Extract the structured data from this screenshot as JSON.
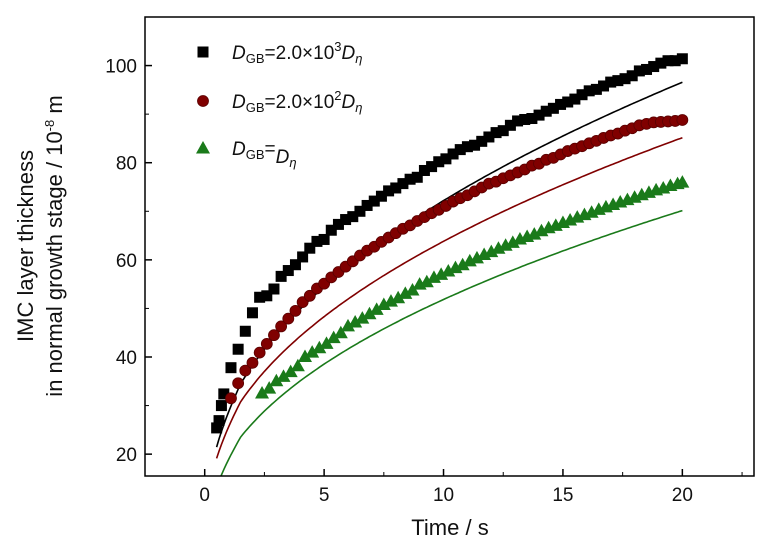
{
  "chart_data": {
    "type": "scatter",
    "xlabel": "Time / s",
    "ylabel_line1": "IMC layer thickness",
    "ylabel_line2_prefix": "in normal growth stage / 10",
    "ylabel_line2_exp": "-8",
    "ylabel_line2_suffix": " m",
    "xlim": [
      -2.5,
      23
    ],
    "ylim": [
      15.5,
      110
    ],
    "xticks": [
      0,
      5,
      10,
      15,
      20
    ],
    "yticks": [
      20,
      40,
      60,
      80,
      100
    ],
    "grid": false,
    "legend_position": "top-left",
    "series": [
      {
        "legend_prefix": "D",
        "legend_sub": "GB",
        "legend_mid": "=2.0×10",
        "legend_sup": "3",
        "legend_suffix": "D",
        "legend_suffix_sub": "η",
        "marker": "square",
        "color": "#000000",
        "fit_color": "#000000",
        "fit_coeff": 22.5,
        "x": [
          0.5,
          0.6,
          0.7,
          0.8,
          1.1,
          1.4,
          1.7,
          2.0,
          2.3,
          2.6,
          2.9,
          3.2,
          3.5,
          3.8,
          4.1,
          4.4,
          4.7,
          5.0,
          5.3,
          5.6,
          5.9,
          6.2,
          6.5,
          6.8,
          7.1,
          7.4,
          7.7,
          8.0,
          8.3,
          8.6,
          8.9,
          9.2,
          9.5,
          9.8,
          10.1,
          10.4,
          10.7,
          11.0,
          11.3,
          11.6,
          11.9,
          12.2,
          12.5,
          12.8,
          13.1,
          13.4,
          13.7,
          14.0,
          14.3,
          14.6,
          14.9,
          15.2,
          15.5,
          15.8,
          16.1,
          16.4,
          16.7,
          17.0,
          17.3,
          17.6,
          17.9,
          18.2,
          18.5,
          18.8,
          19.1,
          19.4,
          19.7,
          20.0
        ],
        "y": [
          25.4,
          26.9,
          30.0,
          32.4,
          37.8,
          41.6,
          45.3,
          49.1,
          52.3,
          52.6,
          54.0,
          56.6,
          57.8,
          59.0,
          60.6,
          62.4,
          63.8,
          64.2,
          66.1,
          67.3,
          68.3,
          68.9,
          70.0,
          71.2,
          72.1,
          73.1,
          74.2,
          74.8,
          75.7,
          76.6,
          77.0,
          78.4,
          79.2,
          80.2,
          80.8,
          81.8,
          82.7,
          83.3,
          83.6,
          84.4,
          85.3,
          86.2,
          86.6,
          87.7,
          88.6,
          88.9,
          89.1,
          89.8,
          90.6,
          91.2,
          92.0,
          92.5,
          93.1,
          94.0,
          94.8,
          95.1,
          95.8,
          96.6,
          96.9,
          97.3,
          97.9,
          98.9,
          99.2,
          99.8,
          100.5,
          101.0,
          101.0,
          101.4
        ]
      },
      {
        "legend_prefix": "D",
        "legend_sub": "GB",
        "legend_mid": "=2.0×10",
        "legend_sup": "2",
        "legend_suffix": "D",
        "legend_suffix_sub": "η",
        "marker": "circle",
        "color": "#800000",
        "fit_color": "#800000",
        "fit_coeff": 19.7,
        "x": [
          1.1,
          1.4,
          1.7,
          2.0,
          2.3,
          2.6,
          2.9,
          3.2,
          3.5,
          3.8,
          4.1,
          4.4,
          4.7,
          5.0,
          5.3,
          5.6,
          5.9,
          6.2,
          6.5,
          6.8,
          7.1,
          7.4,
          7.7,
          8.0,
          8.3,
          8.6,
          8.9,
          9.2,
          9.5,
          9.8,
          10.1,
          10.4,
          10.7,
          11.0,
          11.3,
          11.6,
          11.9,
          12.2,
          12.5,
          12.8,
          13.1,
          13.4,
          13.7,
          14.0,
          14.3,
          14.6,
          14.9,
          15.2,
          15.5,
          15.8,
          16.1,
          16.4,
          16.7,
          17.0,
          17.3,
          17.6,
          17.9,
          18.2,
          18.5,
          18.8,
          19.1,
          19.4,
          19.7,
          20.0
        ],
        "y": [
          31.5,
          34.6,
          37.2,
          38.8,
          40.9,
          42.7,
          44.5,
          46.3,
          47.9,
          49.5,
          51.3,
          52.6,
          54.1,
          55.1,
          56.4,
          57.5,
          58.6,
          59.7,
          60.9,
          61.9,
          62.7,
          63.7,
          64.6,
          65.5,
          66.4,
          67.1,
          68.0,
          68.8,
          69.6,
          70.3,
          71.1,
          72.0,
          72.7,
          73.3,
          74.1,
          74.9,
          75.7,
          76.1,
          76.8,
          77.4,
          78.0,
          78.6,
          79.4,
          79.8,
          80.6,
          81.0,
          81.7,
          82.4,
          82.9,
          83.4,
          84.0,
          84.5,
          85.1,
          85.6,
          86.0,
          86.6,
          87.1,
          87.7,
          88.0,
          88.3,
          88.4,
          88.5,
          88.6,
          88.8
        ]
      },
      {
        "legend_prefix": "D",
        "legend_sub": "GB",
        "legend_mid": "=",
        "legend_sup": "",
        "legend_suffix": "D",
        "legend_suffix_sub": "η",
        "marker": "triangle",
        "color": "#1a7a1a",
        "fit_color": "#1a7a1a",
        "fit_coeff": 16.9,
        "x": [
          2.4,
          2.7,
          3.0,
          3.3,
          3.6,
          3.9,
          4.2,
          4.5,
          4.8,
          5.1,
          5.4,
          5.7,
          6.0,
          6.3,
          6.6,
          6.9,
          7.2,
          7.5,
          7.8,
          8.1,
          8.4,
          8.7,
          9.0,
          9.3,
          9.6,
          9.9,
          10.2,
          10.5,
          10.8,
          11.1,
          11.4,
          11.7,
          12.0,
          12.3,
          12.6,
          12.9,
          13.2,
          13.5,
          13.8,
          14.1,
          14.4,
          14.7,
          15.0,
          15.3,
          15.6,
          15.9,
          16.2,
          16.5,
          16.8,
          17.1,
          17.4,
          17.7,
          18.0,
          18.3,
          18.6,
          18.9,
          19.2,
          19.5,
          19.8,
          20.0
        ],
        "y": [
          32.6,
          33.6,
          35.1,
          36.0,
          37.0,
          38.2,
          40.1,
          41.0,
          41.9,
          42.8,
          44.0,
          45.0,
          46.4,
          47.2,
          48.0,
          48.9,
          49.8,
          50.8,
          51.5,
          52.2,
          53.1,
          53.8,
          55.0,
          55.5,
          56.4,
          57.0,
          57.7,
          58.4,
          59.0,
          59.8,
          60.4,
          61.1,
          61.7,
          62.4,
          63.0,
          63.6,
          64.3,
          64.8,
          65.3,
          66.0,
          66.6,
          67.1,
          67.7,
          68.2,
          68.8,
          69.3,
          69.8,
          70.4,
          70.9,
          71.4,
          71.9,
          72.4,
          72.9,
          73.4,
          73.9,
          74.4,
          74.8,
          75.3,
          75.7,
          76.0
        ]
      }
    ]
  }
}
